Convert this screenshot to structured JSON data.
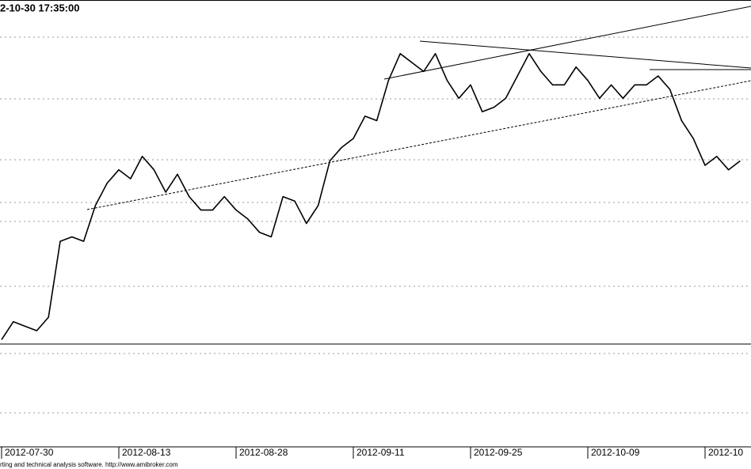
{
  "chart_data": {
    "type": "line",
    "title": "2-10-30 17:35:00",
    "footer": "rting and technical analysis software. http://www.amibroker.com",
    "categories": [
      "2012-07-30",
      null,
      null,
      null,
      null,
      null,
      null,
      null,
      null,
      null,
      "2012-08-13",
      null,
      null,
      null,
      null,
      null,
      null,
      null,
      null,
      null,
      "2012-08-28",
      null,
      null,
      null,
      null,
      null,
      null,
      null,
      null,
      null,
      "2012-09-11",
      null,
      null,
      null,
      null,
      null,
      null,
      null,
      null,
      null,
      "2012-09-25",
      null,
      null,
      null,
      null,
      null,
      null,
      null,
      null,
      null,
      "2012-10-09",
      null,
      null,
      null,
      null,
      null,
      null,
      null,
      null,
      null,
      "2012-10",
      null,
      null,
      null
    ],
    "values": [
      24,
      28,
      27,
      26,
      29,
      46,
      47,
      46,
      54,
      59,
      62,
      60,
      65,
      62,
      57,
      61,
      56,
      53,
      53,
      56,
      53,
      51,
      48,
      47,
      56,
      55,
      50,
      54,
      64,
      67,
      69,
      74,
      73,
      82,
      88,
      86,
      84,
      88,
      82,
      78,
      81,
      75,
      76,
      78,
      83,
      88,
      84,
      81,
      81,
      85,
      82,
      78,
      81,
      78,
      81,
      81,
      83,
      80,
      73,
      69,
      63,
      65,
      62,
      64
    ],
    "color": "#000000",
    "ylim": [
      0,
      100
    ]
  }
}
